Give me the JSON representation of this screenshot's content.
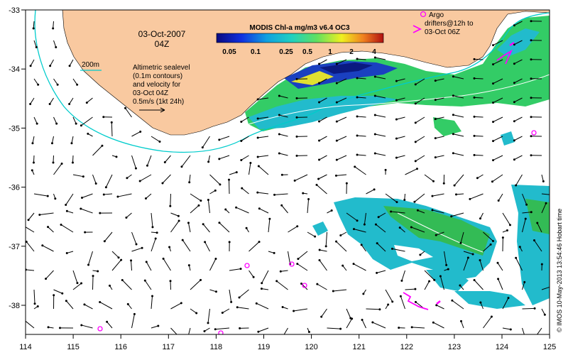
{
  "map": {
    "lon_ticks": [
      "114",
      "115",
      "116",
      "117",
      "118",
      "119",
      "120",
      "121",
      "122",
      "123",
      "124",
      "125"
    ],
    "lat_ticks": [
      "-33",
      "-34",
      "-35",
      "-36",
      "-37",
      "-38"
    ],
    "date_line1": "03-Oct-2007",
    "date_line2": "04Z",
    "contour_label": "200m",
    "sealevel_note": [
      "Altimetric sealevel",
      "(0.1m contours)",
      "and velocity for",
      "03-Oct 04Z",
      "0.5m/s (1kt 24h)"
    ],
    "colorbar": {
      "title": "MODIS Chl-a mg/m3 v6.4 OC3",
      "labels": [
        "0.05",
        "0.1",
        "0.25",
        "0.5",
        "1",
        "2",
        "4"
      ]
    },
    "argo_note": [
      "Argo",
      "drifters@12h to",
      "03-Oct 06Z"
    ],
    "credit": "© IMOS 10-May-2013 13:54:46 Hobart time",
    "colors": {
      "land": "#f9c9a0",
      "contour": "#00cccc",
      "chl_green": "#33cc55",
      "chl_cyan": "#22bbcc",
      "argo": "#ff00ff"
    }
  }
}
